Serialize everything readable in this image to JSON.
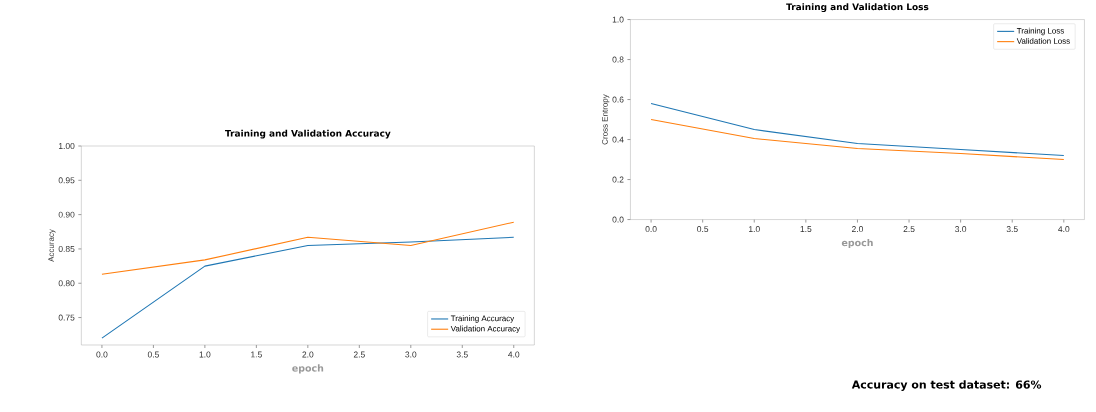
{
  "chart_data": [
    {
      "type": "line",
      "title": "Training and Validation Accuracy",
      "xlabel": "epoch",
      "ylabel": "Accuracy",
      "x": [
        0,
        1,
        2,
        3,
        4
      ],
      "series": [
        {
          "name": "Training Accuracy",
          "color": "#1f77b4",
          "values": [
            0.72,
            0.825,
            0.855,
            0.86,
            0.867
          ]
        },
        {
          "name": "Validation Accuracy",
          "color": "#ff7f0e",
          "values": [
            0.813,
            0.834,
            0.867,
            0.855,
            0.889
          ]
        }
      ],
      "xlim": [
        -0.2,
        4.2
      ],
      "ylim": [
        0.71,
        1.0
      ],
      "xticks": [
        {
          "value": 0,
          "label": "0.0"
        },
        {
          "value": 0.5,
          "label": "0.5"
        },
        {
          "value": 1,
          "label": "1.0"
        },
        {
          "value": 1.5,
          "label": "1.5"
        },
        {
          "value": 2,
          "label": "2.0"
        },
        {
          "value": 2.5,
          "label": "2.5"
        },
        {
          "value": 3,
          "label": "3.0"
        },
        {
          "value": 3.5,
          "label": "3.5"
        },
        {
          "value": 4,
          "label": "4.0"
        }
      ],
      "yticks": [
        {
          "value": 0.75,
          "label": "0.75"
        },
        {
          "value": 0.8,
          "label": "0.80"
        },
        {
          "value": 0.85,
          "label": "0.85"
        },
        {
          "value": 0.9,
          "label": "0.90"
        },
        {
          "value": 0.95,
          "label": "0.95"
        },
        {
          "value": 1.0,
          "label": "1.00"
        }
      ],
      "legend": "bottom right"
    },
    {
      "type": "line",
      "title": "Training and Validation Loss",
      "xlabel": "epoch",
      "ylabel": "Cross Entropy",
      "x": [
        0,
        1,
        2,
        3,
        4
      ],
      "series": [
        {
          "name": "Training Loss",
          "color": "#1f77b4",
          "values": [
            0.58,
            0.45,
            0.38,
            0.35,
            0.32
          ]
        },
        {
          "name": "Validation Loss",
          "color": "#ff7f0e",
          "values": [
            0.5,
            0.405,
            0.355,
            0.33,
            0.3
          ]
        }
      ],
      "xlim": [
        -0.2,
        4.2
      ],
      "ylim": [
        0.0,
        1.0
      ],
      "xticks": [
        {
          "value": 0,
          "label": "0.0"
        },
        {
          "value": 0.5,
          "label": "0.5"
        },
        {
          "value": 1,
          "label": "1.0"
        },
        {
          "value": 1.5,
          "label": "1.5"
        },
        {
          "value": 2,
          "label": "2.0"
        },
        {
          "value": 2.5,
          "label": "2.5"
        },
        {
          "value": 3,
          "label": "3.0"
        },
        {
          "value": 3.5,
          "label": "3.5"
        },
        {
          "value": 4,
          "label": "4.0"
        }
      ],
      "yticks": [
        {
          "value": 0.0,
          "label": "0.0"
        },
        {
          "value": 0.2,
          "label": "0.2"
        },
        {
          "value": 0.4,
          "label": "0.4"
        },
        {
          "value": 0.6,
          "label": "0.6"
        },
        {
          "value": 0.8,
          "label": "0.8"
        },
        {
          "value": 1.0,
          "label": "1.0"
        }
      ],
      "legend": "top right",
      "annotations": [
        "Accuracy on test dataset: 66%"
      ]
    }
  ]
}
